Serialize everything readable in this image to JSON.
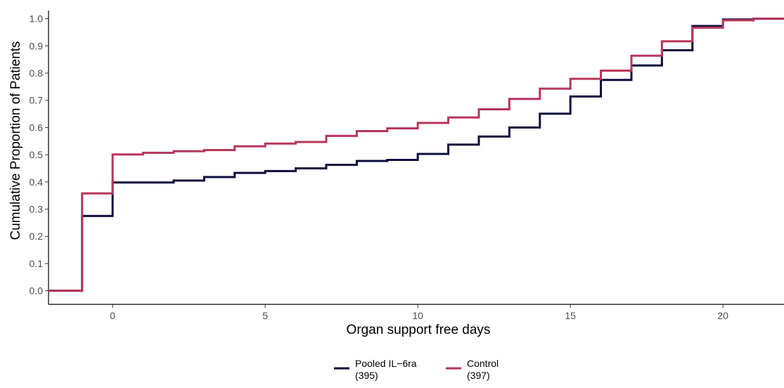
{
  "chart_data": {
    "type": "line",
    "step": true,
    "title": "",
    "xlabel": "Organ support free days",
    "ylabel": "Cumulative Proportion of Patients",
    "xlim": [
      -2.1,
      22
    ],
    "ylim": [
      -0.05,
      1.03
    ],
    "xticks": [
      0,
      5,
      10,
      15,
      20
    ],
    "yticks": [
      0.0,
      0.1,
      0.2,
      0.3,
      0.4,
      0.5,
      0.6,
      0.7,
      0.8,
      0.9,
      1.0
    ],
    "xtick_labels": [
      "0",
      "5",
      "10",
      "15",
      "20"
    ],
    "ytick_labels": [
      "0.0",
      "0.1",
      "0.2",
      "0.3",
      "0.4",
      "0.5",
      "0.6",
      "0.7",
      "0.8",
      "0.9",
      "1.0"
    ],
    "grid": false,
    "legend_position": "bottom",
    "series": [
      {
        "name": "Pooled IL−6ra",
        "count": "(395)",
        "color": "#0d0d3d",
        "points": [
          [
            -2.1,
            0.0
          ],
          [
            -1,
            0.0
          ],
          [
            -1,
            0.275
          ],
          [
            0,
            0.275
          ],
          [
            0,
            0.398
          ],
          [
            2,
            0.398
          ],
          [
            2,
            0.405
          ],
          [
            3,
            0.405
          ],
          [
            3,
            0.418
          ],
          [
            4,
            0.418
          ],
          [
            4,
            0.433
          ],
          [
            5,
            0.433
          ],
          [
            5,
            0.44
          ],
          [
            6,
            0.44
          ],
          [
            6,
            0.45
          ],
          [
            7,
            0.45
          ],
          [
            7,
            0.463
          ],
          [
            8,
            0.463
          ],
          [
            8,
            0.477
          ],
          [
            9,
            0.477
          ],
          [
            9,
            0.481
          ],
          [
            10,
            0.481
          ],
          [
            10,
            0.503
          ],
          [
            11,
            0.503
          ],
          [
            11,
            0.537
          ],
          [
            12,
            0.537
          ],
          [
            12,
            0.567
          ],
          [
            13,
            0.567
          ],
          [
            13,
            0.6
          ],
          [
            14,
            0.6
          ],
          [
            14,
            0.651
          ],
          [
            15,
            0.651
          ],
          [
            15,
            0.714
          ],
          [
            16,
            0.714
          ],
          [
            16,
            0.775
          ],
          [
            17,
            0.775
          ],
          [
            17,
            0.828
          ],
          [
            18,
            0.828
          ],
          [
            18,
            0.884
          ],
          [
            19,
            0.884
          ],
          [
            19,
            0.973
          ],
          [
            20,
            0.973
          ],
          [
            20,
            0.997
          ],
          [
            21,
            0.997
          ],
          [
            21,
            1.0
          ],
          [
            22,
            1.0
          ]
        ]
      },
      {
        "name": "Control",
        "count": "(397)",
        "color": "#b8355a",
        "points": [
          [
            -2.1,
            0.0
          ],
          [
            -1,
            0.0
          ],
          [
            -1,
            0.358
          ],
          [
            0,
            0.358
          ],
          [
            0,
            0.501
          ],
          [
            1,
            0.501
          ],
          [
            1,
            0.507
          ],
          [
            2,
            0.507
          ],
          [
            2,
            0.513
          ],
          [
            3,
            0.513
          ],
          [
            3,
            0.517
          ],
          [
            4,
            0.517
          ],
          [
            4,
            0.531
          ],
          [
            5,
            0.531
          ],
          [
            5,
            0.541
          ],
          [
            6,
            0.541
          ],
          [
            6,
            0.547
          ],
          [
            7,
            0.547
          ],
          [
            7,
            0.569
          ],
          [
            8,
            0.569
          ],
          [
            8,
            0.587
          ],
          [
            9,
            0.587
          ],
          [
            9,
            0.597
          ],
          [
            10,
            0.597
          ],
          [
            10,
            0.617
          ],
          [
            11,
            0.617
          ],
          [
            11,
            0.637
          ],
          [
            12,
            0.637
          ],
          [
            12,
            0.667
          ],
          [
            13,
            0.667
          ],
          [
            13,
            0.705
          ],
          [
            14,
            0.705
          ],
          [
            14,
            0.743
          ],
          [
            15,
            0.743
          ],
          [
            15,
            0.779
          ],
          [
            16,
            0.779
          ],
          [
            16,
            0.809
          ],
          [
            17,
            0.809
          ],
          [
            17,
            0.864
          ],
          [
            18,
            0.864
          ],
          [
            18,
            0.917
          ],
          [
            19,
            0.917
          ],
          [
            19,
            0.967
          ],
          [
            20,
            0.967
          ],
          [
            20,
            0.994
          ],
          [
            21,
            0.994
          ],
          [
            21,
            1.0
          ],
          [
            22,
            1.0
          ]
        ]
      }
    ]
  }
}
